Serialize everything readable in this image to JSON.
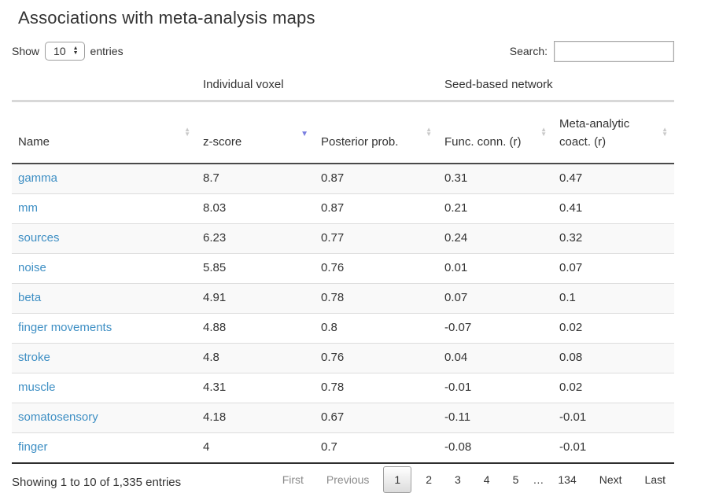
{
  "page": {
    "title": "Associations with meta-analysis maps"
  },
  "controls": {
    "show_label": "Show",
    "page_length": "10",
    "entries_label": "entries",
    "search_label": "Search:",
    "search_value": ""
  },
  "table": {
    "group_headers": [
      {
        "label": "Individual voxel"
      },
      {
        "label": "Seed-based network"
      }
    ],
    "columns": [
      {
        "label": "Name",
        "sort": "none"
      },
      {
        "label": "z-score",
        "sort": "desc"
      },
      {
        "label": "Posterior prob.",
        "sort": "none"
      },
      {
        "label": "Func. conn. (r)",
        "sort": "none"
      },
      {
        "label": "Meta-analytic coact. (r)",
        "sort": "none"
      }
    ],
    "rows": [
      {
        "name": "gamma",
        "z_score": "8.7",
        "posterior_prob": "0.87",
        "func_conn": "0.31",
        "meta_coact": "0.47"
      },
      {
        "name": "mm",
        "z_score": "8.03",
        "posterior_prob": "0.87",
        "func_conn": "0.21",
        "meta_coact": "0.41"
      },
      {
        "name": "sources",
        "z_score": "6.23",
        "posterior_prob": "0.77",
        "func_conn": "0.24",
        "meta_coact": "0.32"
      },
      {
        "name": "noise",
        "z_score": "5.85",
        "posterior_prob": "0.76",
        "func_conn": "0.01",
        "meta_coact": "0.07"
      },
      {
        "name": "beta",
        "z_score": "4.91",
        "posterior_prob": "0.78",
        "func_conn": "0.07",
        "meta_coact": "0.1"
      },
      {
        "name": "finger movements",
        "z_score": "4.88",
        "posterior_prob": "0.8",
        "func_conn": "-0.07",
        "meta_coact": "0.02"
      },
      {
        "name": "stroke",
        "z_score": "4.8",
        "posterior_prob": "0.76",
        "func_conn": "0.04",
        "meta_coact": "0.08"
      },
      {
        "name": "muscle",
        "z_score": "4.31",
        "posterior_prob": "0.78",
        "func_conn": "-0.01",
        "meta_coact": "0.02"
      },
      {
        "name": "somatosensory",
        "z_score": "4.18",
        "posterior_prob": "0.67",
        "func_conn": "-0.11",
        "meta_coact": "-0.01"
      },
      {
        "name": "finger",
        "z_score": "4",
        "posterior_prob": "0.7",
        "func_conn": "-0.08",
        "meta_coact": "-0.01"
      }
    ]
  },
  "footer": {
    "info": "Showing 1 to 10 of 1,335 entries",
    "pagination": {
      "first": "First",
      "previous": "Previous",
      "pages": [
        "1",
        "2",
        "3",
        "4",
        "5"
      ],
      "ellipsis": "…",
      "last_page": "134",
      "next": "Next",
      "last": "Last",
      "current_page": "1"
    }
  },
  "icons": {
    "sort_both": "sort-up-down-icon",
    "sort_desc": "sort-desc-icon",
    "select_stepper": "stepper-up-down-icon"
  },
  "colors": {
    "link": "#3e8fc4",
    "sort_active": "#7a7fe0",
    "sort_inactive": "#c9c9c9",
    "stripe_row": "#f9f9f9",
    "header_border_dark": "#4a4a4a",
    "header_border_light": "#d8d8d8"
  }
}
